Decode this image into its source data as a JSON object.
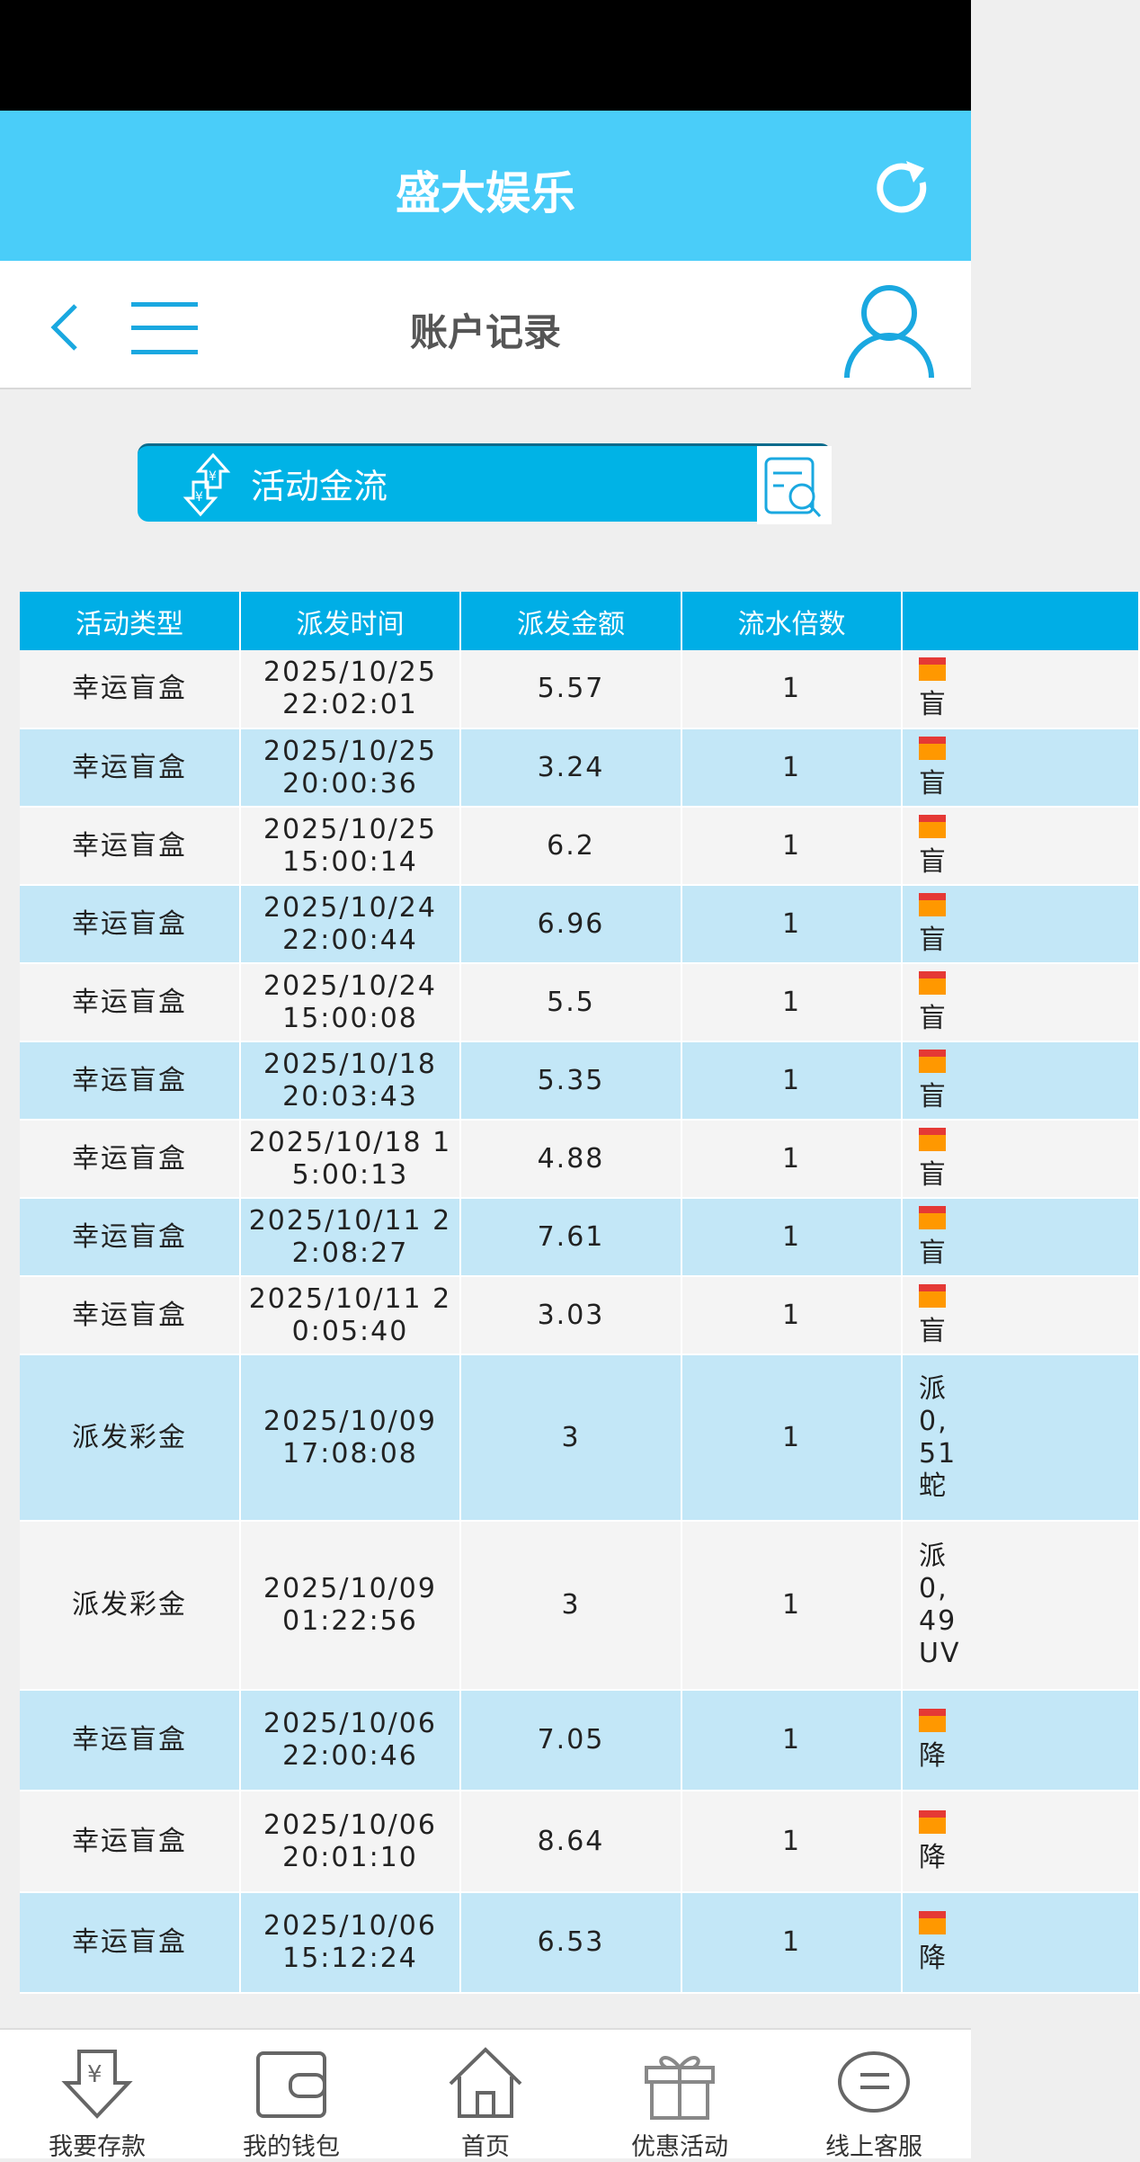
{
  "app_title": "盛大娱乐",
  "page_title": "账户记录",
  "banner": {
    "label": "活动金流"
  },
  "table": {
    "columns": [
      "活动类型",
      "派发时间",
      "派发金额",
      "流水倍数",
      ""
    ],
    "rows": [
      {
        "type": "幸运盲盒",
        "time": "2025/10/25\n22:02:01",
        "amount": "5.57",
        "multiplier": "1",
        "note": "盲"
      },
      {
        "type": "幸运盲盒",
        "time": "2025/10/25\n20:00:36",
        "amount": "3.24",
        "multiplier": "1",
        "note": "盲"
      },
      {
        "type": "幸运盲盒",
        "time": "2025/10/25\n15:00:14",
        "amount": "6.2",
        "multiplier": "1",
        "note": "盲"
      },
      {
        "type": "幸运盲盒",
        "time": "2025/10/24\n22:00:44",
        "amount": "6.96",
        "multiplier": "1",
        "note": "盲"
      },
      {
        "type": "幸运盲盒",
        "time": "2025/10/24\n15:00:08",
        "amount": "5.5",
        "multiplier": "1",
        "note": "盲"
      },
      {
        "type": "幸运盲盒",
        "time": "2025/10/18\n20:03:43",
        "amount": "5.35",
        "multiplier": "1",
        "note": "盲"
      },
      {
        "type": "幸运盲盒",
        "time": "2025/10/18 1\n5:00:13",
        "amount": "4.88",
        "multiplier": "1",
        "note": "盲"
      },
      {
        "type": "幸运盲盒",
        "time": "2025/10/11 2\n2:08:27",
        "amount": "7.61",
        "multiplier": "1",
        "note": "盲"
      },
      {
        "type": "幸运盲盒",
        "time": "2025/10/11 2\n0:05:40",
        "amount": "3.03",
        "multiplier": "1",
        "note": "盲"
      },
      {
        "type": "派发彩金",
        "time": "2025/10/09\n17:08:08",
        "amount": "3",
        "multiplier": "1",
        "note": "派\n0,\n51\n蛇"
      },
      {
        "type": "派发彩金",
        "time": "2025/10/09\n01:22:56",
        "amount": "3",
        "multiplier": "1",
        "note": "派\n0,\n49\nUV"
      },
      {
        "type": "幸运盲盒",
        "time": "2025/10/06\n22:00:46",
        "amount": "7.05",
        "multiplier": "1",
        "note": "降"
      },
      {
        "type": "幸运盲盒",
        "time": "2025/10/06\n20:01:10",
        "amount": "8.64",
        "multiplier": "1",
        "note": "降"
      },
      {
        "type": "幸运盲盒",
        "time": "2025/10/06\n15:12:24",
        "amount": "6.53",
        "multiplier": "1",
        "note": "降"
      }
    ]
  },
  "bottom_nav": [
    {
      "label": "我要存款",
      "icon": "deposit-icon"
    },
    {
      "label": "我的钱包",
      "icon": "wallet-icon"
    },
    {
      "label": "首页",
      "icon": "home-icon"
    },
    {
      "label": "优惠活动",
      "icon": "gift-icon"
    },
    {
      "label": "线上客服",
      "icon": "chat-icon"
    }
  ],
  "colors": {
    "header": "#4acdf9",
    "accent": "#00aee6",
    "row_alt": "#c3e7f7"
  }
}
